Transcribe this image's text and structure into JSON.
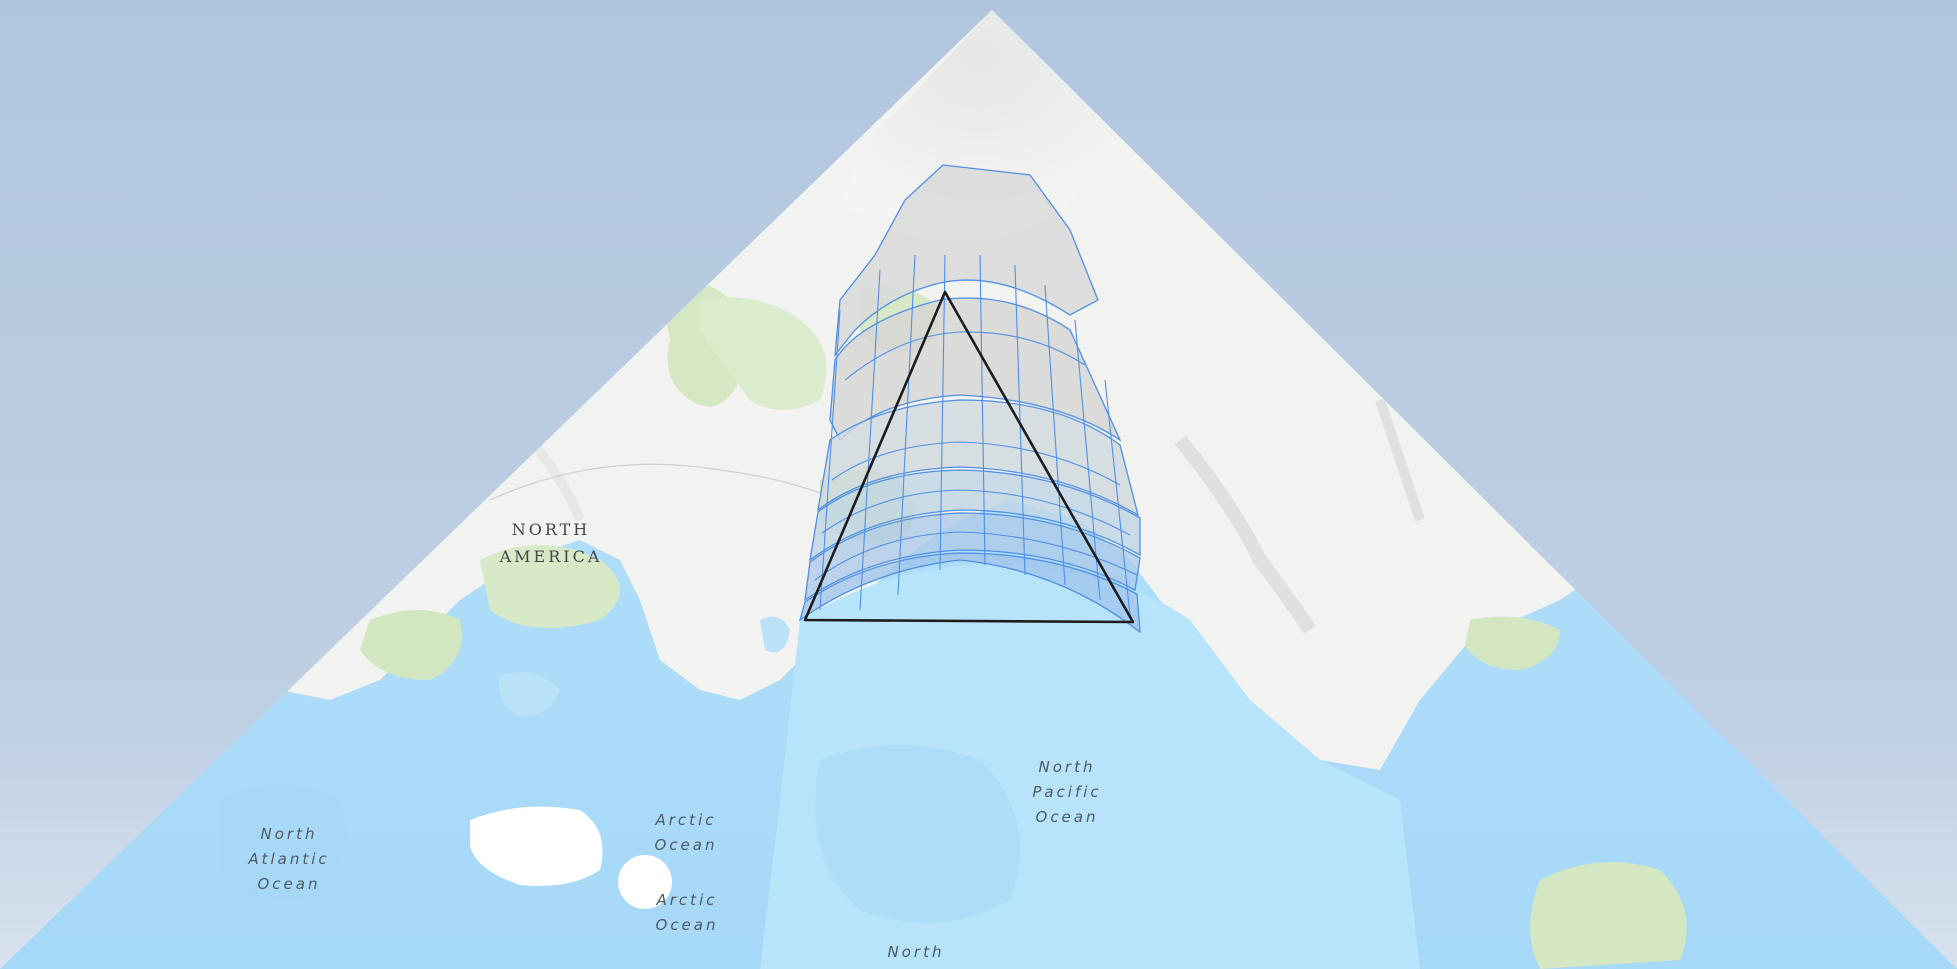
{
  "map": {
    "projection": "triangular (octahedral face) view",
    "colors": {
      "background": "#b3c7de",
      "land": "#f2f2f0",
      "vegetation": "#cfe3ba",
      "ocean": "#b6e2fb",
      "ocean_deep": "#9fd1f3",
      "grid_stroke": "#4f8fe6",
      "grid_fill": "#d9d9d9",
      "grid_fill_near": "#9fc6ec",
      "triangle_stroke": "#1c1c1c"
    },
    "labels": {
      "north_america": [
        "NORTH",
        "AMERICA"
      ],
      "north_pacific": [
        "North",
        "Pacific",
        "Ocean"
      ],
      "north_atlantic": [
        "North",
        "Atlantic",
        "Ocean"
      ],
      "arctic_ocean_1": [
        "Arctic",
        "Ocean"
      ],
      "arctic_ocean_2": [
        "Arctic",
        "Ocean"
      ],
      "north_bottom": [
        "North"
      ]
    }
  }
}
